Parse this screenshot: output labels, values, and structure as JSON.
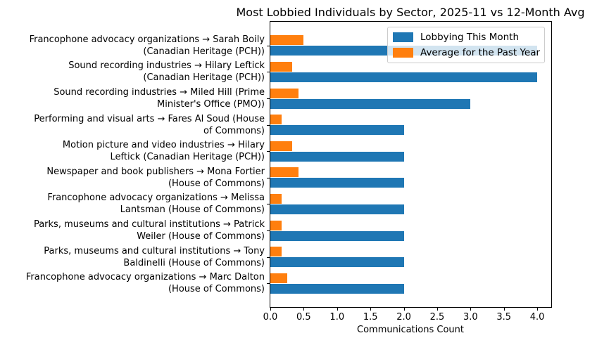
{
  "chart_data": {
    "type": "bar",
    "orientation": "horizontal",
    "title": "Most Lobbied Individuals by Sector, 2025-11 vs 12-Month Avg",
    "xlabel": "Communications Count",
    "xlim": [
      0,
      4.21
    ],
    "xtick_step": 0.5,
    "xticks": [
      "0.0",
      "0.5",
      "1.0",
      "1.5",
      "2.0",
      "2.5",
      "3.0",
      "3.5",
      "4.0"
    ],
    "grid": false,
    "legend_position": "upper right",
    "categories": [
      "Francophone advocacy organizations → Sarah Boily\n(Canadian Heritage (PCH))",
      "Sound recording industries → Hilary Leftick\n(Canadian Heritage (PCH))",
      "Sound recording industries → Miled Hill (Prime\nMinister's Office (PMO))",
      "Performing and visual arts → Fares Al Soud (House\nof Commons)",
      "Motion picture and video industries → Hilary\nLeftick (Canadian Heritage (PCH))",
      "Newspaper and book publishers → Mona Fortier\n(House of Commons)",
      "Francophone advocacy organizations → Melissa\nLantsman (House of Commons)",
      "Parks, museums and cultural institutions → Patrick\nWeiler (House of Commons)",
      "Parks, museums and cultural institutions → Tony\nBaldinelli (House of Commons)",
      "Francophone advocacy organizations → Marc Dalton\n(House of Commons)"
    ],
    "series": [
      {
        "name": "Lobbying This Month",
        "color": "#1f77b4",
        "values": [
          4.0,
          4.0,
          3.0,
          2.0,
          2.0,
          2.0,
          2.0,
          2.0,
          2.0,
          2.0
        ]
      },
      {
        "name": "Average for the Past Year",
        "color": "#ff7f0e",
        "values": [
          0.5,
          0.33,
          0.42,
          0.17,
          0.33,
          0.42,
          0.17,
          0.17,
          0.17,
          0.25
        ]
      }
    ]
  }
}
